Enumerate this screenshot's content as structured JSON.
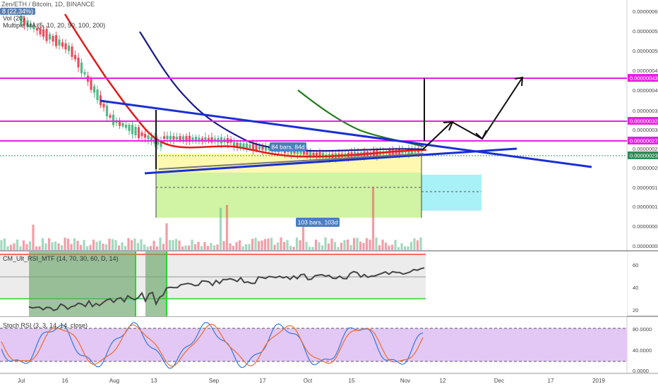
{
  "main_chart": {
    "title": "Zen/ETH / Bitcoin, 1D, BINANCE",
    "change_badge": "8 (22.34%)",
    "indicators": [
      "Vol (20)",
      "Multiple MA (5, 10, 20, 50, 100, 200)"
    ],
    "price_scale": [
      "0.00000060",
      "0.00000055",
      "0.00000050",
      "0.00000045",
      "0.00000043",
      "0.00000040",
      "0.00000035",
      "0.00000032",
      "0.00000030",
      "0.00000027",
      "0.00000025",
      "0.00000023",
      "0.00000020",
      "0.00000015",
      "0.00000010",
      "0.00000005",
      "0.00000000"
    ],
    "price_tags": [
      {
        "label": "0.00000043",
        "color": "#e91ee0"
      },
      {
        "label": "0.00000032",
        "color": "#e91ee0"
      },
      {
        "label": "0.00000027",
        "color": "#e91ee0"
      },
      {
        "label": "0.00000023",
        "color": "#2e8b57"
      }
    ],
    "range_labels": [
      "84 bars, 84d",
      "103 bars, 103d"
    ]
  },
  "rsi_panel": {
    "title": "CM_Ult_RSI_MTF (14, 70, 30, 60, D, 14)",
    "scale": [
      "60",
      "40",
      "20"
    ]
  },
  "stoch_panel": {
    "title": "Stoch RSI (3, 3, 14, 14, close)",
    "scale": [
      "80.0000",
      "40.0000",
      "0.0000"
    ]
  },
  "time_axis": [
    "Jul",
    "16",
    "Aug",
    "13",
    "Sep",
    "17",
    "Oct",
    "15",
    "Nov",
    "12",
    "Dec",
    "17",
    "2019"
  ],
  "colors": {
    "magenta": "#e91ee0",
    "blue_trend": "#1a2fd4",
    "red_ma": "#e01b1b",
    "navy_ma": "#1b1b8a",
    "green_ma": "#1f7a1f",
    "candle_up": "#53b987",
    "candle_down": "#eb4d5c"
  }
}
